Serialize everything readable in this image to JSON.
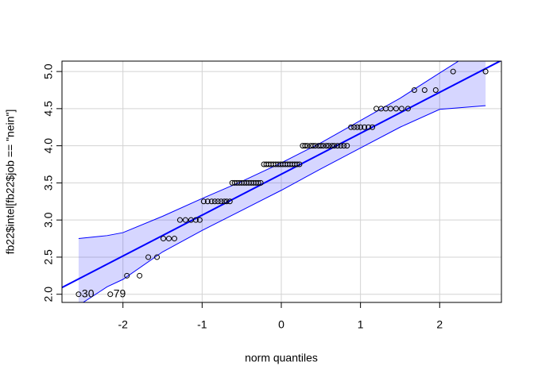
{
  "chart_data": {
    "type": "scatter",
    "xlabel": "norm quantiles",
    "ylabel": "fb22$intel[fb22$job == \"nein\"]",
    "xlim": [
      -2.77,
      2.78
    ],
    "ylim": [
      1.89,
      5.14
    ],
    "xticks": [
      -2,
      -1,
      0,
      1,
      2
    ],
    "yticks": [
      {
        "value": 2,
        "label": "2.0"
      },
      {
        "value": 2.5,
        "label": "2.5"
      },
      {
        "value": 3,
        "label": "3.0"
      },
      {
        "value": 3.5,
        "label": "3.5"
      },
      {
        "value": 4,
        "label": "4.0"
      },
      {
        "value": 4.5,
        "label": "4.5"
      },
      {
        "value": 5,
        "label": "5.0"
      }
    ],
    "grid": true,
    "point_color": "#000000",
    "line_color": "#0000ff",
    "band_color": "#0000ff",
    "x": [
      -2.56,
      -2.16,
      -1.95,
      -1.79,
      -1.68,
      -1.57,
      -1.49,
      -1.42,
      -1.35,
      -1.28,
      -1.21,
      -1.14,
      -1.08,
      -1.03,
      -0.98,
      -0.93,
      -0.88,
      -0.84,
      -0.8,
      -0.76,
      -0.72,
      -0.69,
      -0.65,
      -0.62,
      -0.59,
      -0.56,
      -0.53,
      -0.5,
      -0.47,
      -0.44,
      -0.41,
      -0.38,
      -0.35,
      -0.32,
      -0.29,
      -0.26,
      -0.22,
      -0.19,
      -0.16,
      -0.13,
      -0.1,
      -0.07,
      -0.04,
      -0.01,
      0.02,
      0.05,
      0.08,
      0.11,
      0.14,
      0.17,
      0.2,
      0.23,
      0.27,
      0.3,
      0.33,
      0.37,
      0.4,
      0.43,
      0.47,
      0.5,
      0.53,
      0.57,
      0.6,
      0.64,
      0.67,
      0.71,
      0.75,
      0.79,
      0.83,
      0.88,
      0.92,
      0.96,
      1.0,
      1.05,
      1.1,
      1.15,
      1.2,
      1.26,
      1.32,
      1.38,
      1.45,
      1.52,
      1.6,
      1.68,
      1.81,
      1.95,
      2.17,
      2.58
    ],
    "y": [
      2,
      2,
      2.25,
      2.25,
      2.5,
      2.5,
      2.75,
      2.75,
      2.75,
      3,
      3,
      3,
      3,
      3,
      3.25,
      3.25,
      3.25,
      3.25,
      3.25,
      3.25,
      3.25,
      3.25,
      3.25,
      3.5,
      3.5,
      3.5,
      3.5,
      3.5,
      3.5,
      3.5,
      3.5,
      3.5,
      3.5,
      3.5,
      3.5,
      3.5,
      3.75,
      3.75,
      3.75,
      3.75,
      3.75,
      3.75,
      3.75,
      3.75,
      3.75,
      3.75,
      3.75,
      3.75,
      3.75,
      3.75,
      3.75,
      3.75,
      4,
      4,
      4,
      4,
      4,
      4,
      4,
      4,
      4,
      4,
      4,
      4,
      4,
      4,
      4,
      4,
      4,
      4.25,
      4.25,
      4.25,
      4.25,
      4.25,
      4.25,
      4.25,
      4.5,
      4.5,
      4.5,
      4.5,
      4.5,
      4.5,
      4.5,
      4.75,
      4.75,
      4.75,
      5,
      5
    ],
    "point_labels": [
      "30",
      "79",
      null,
      null,
      null,
      null,
      null,
      null,
      null,
      null,
      null,
      null,
      null,
      null,
      null,
      null,
      null,
      null,
      null,
      null,
      null,
      null,
      null,
      null,
      null,
      null,
      null,
      null,
      null,
      null,
      null,
      null,
      null,
      null,
      null,
      null,
      null,
      null,
      null,
      null,
      null,
      null,
      null,
      null,
      null,
      null,
      null,
      null,
      null,
      null,
      null,
      null,
      null,
      null,
      null,
      null,
      null,
      null,
      null,
      null,
      null,
      null,
      null,
      null,
      null,
      null,
      null,
      null,
      null,
      null,
      null,
      null,
      null,
      null,
      null,
      null,
      null,
      null,
      null,
      null,
      null,
      null,
      null,
      null,
      null,
      null,
      null,
      null
    ],
    "line": {
      "x": [
        -2.77,
        2.78
      ],
      "y": [
        2.09,
        5.15
      ]
    },
    "band": {
      "x": [
        -2.56,
        -2.2,
        -2,
        -1.5,
        -1,
        -0.5,
        0,
        0.5,
        1,
        1.5,
        2,
        2.58
      ],
      "upper": [
        2.75,
        2.79,
        2.83,
        3.05,
        3.29,
        3.52,
        3.77,
        4.04,
        4.34,
        4.64,
        4.98,
        5.37
      ],
      "lower": [
        1.85,
        2.1,
        2.2,
        2.57,
        2.86,
        3.13,
        3.4,
        3.69,
        3.97,
        4.25,
        4.49,
        4.54
      ]
    }
  }
}
